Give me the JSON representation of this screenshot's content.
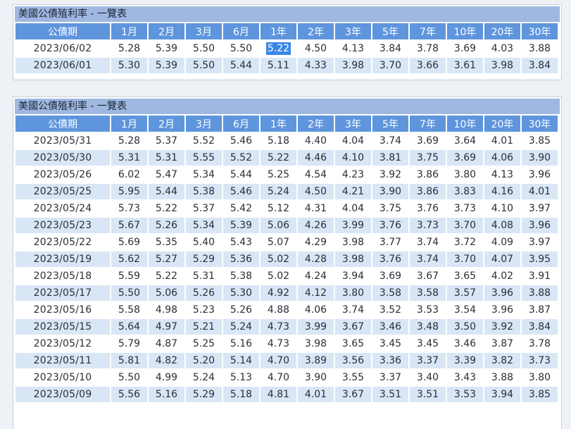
{
  "columns": [
    "公債期",
    "1月",
    "2月",
    "3月",
    "6月",
    "1年",
    "2年",
    "3年",
    "5年",
    "7年",
    "10年",
    "20年",
    "30年"
  ],
  "tables": [
    {
      "title": "美國公債殖利率 - 一覽表",
      "rows": [
        {
          "date": "2023/06/02",
          "values": [
            "5.28",
            "5.39",
            "5.50",
            "5.50",
            "5.22",
            "4.50",
            "4.13",
            "3.84",
            "3.78",
            "3.69",
            "4.03",
            "3.88"
          ]
        },
        {
          "date": "2023/06/01",
          "values": [
            "5.30",
            "5.39",
            "5.50",
            "5.44",
            "5.11",
            "4.33",
            "3.98",
            "3.70",
            "3.66",
            "3.61",
            "3.98",
            "3.84"
          ]
        }
      ]
    },
    {
      "title": "美國公債殖利率 - 一覽表",
      "rows": [
        {
          "date": "2023/05/31",
          "values": [
            "5.28",
            "5.37",
            "5.52",
            "5.46",
            "5.18",
            "4.40",
            "4.04",
            "3.74",
            "3.69",
            "3.64",
            "4.01",
            "3.85"
          ]
        },
        {
          "date": "2023/05/30",
          "values": [
            "5.31",
            "5.31",
            "5.55",
            "5.52",
            "5.22",
            "4.46",
            "4.10",
            "3.81",
            "3.75",
            "3.69",
            "4.06",
            "3.90"
          ]
        },
        {
          "date": "2023/05/26",
          "values": [
            "6.02",
            "5.47",
            "5.34",
            "5.44",
            "5.25",
            "4.54",
            "4.23",
            "3.92",
            "3.86",
            "3.80",
            "4.13",
            "3.96"
          ]
        },
        {
          "date": "2023/05/25",
          "values": [
            "5.95",
            "5.44",
            "5.38",
            "5.46",
            "5.24",
            "4.50",
            "4.21",
            "3.90",
            "3.86",
            "3.83",
            "4.16",
            "4.01"
          ]
        },
        {
          "date": "2023/05/24",
          "values": [
            "5.73",
            "5.22",
            "5.37",
            "5.42",
            "5.12",
            "4.31",
            "4.04",
            "3.75",
            "3.76",
            "3.73",
            "4.10",
            "3.97"
          ]
        },
        {
          "date": "2023/05/23",
          "values": [
            "5.67",
            "5.26",
            "5.34",
            "5.39",
            "5.06",
            "4.26",
            "3.99",
            "3.76",
            "3.73",
            "3.70",
            "4.08",
            "3.96"
          ]
        },
        {
          "date": "2023/05/22",
          "values": [
            "5.69",
            "5.35",
            "5.40",
            "5.43",
            "5.07",
            "4.29",
            "3.98",
            "3.77",
            "3.74",
            "3.72",
            "4.09",
            "3.97"
          ]
        },
        {
          "date": "2023/05/19",
          "values": [
            "5.62",
            "5.27",
            "5.29",
            "5.36",
            "5.02",
            "4.28",
            "3.98",
            "3.76",
            "3.74",
            "3.70",
            "4.07",
            "3.95"
          ]
        },
        {
          "date": "2023/05/18",
          "values": [
            "5.59",
            "5.22",
            "5.31",
            "5.38",
            "5.02",
            "4.24",
            "3.94",
            "3.69",
            "3.67",
            "3.65",
            "4.02",
            "3.91"
          ]
        },
        {
          "date": "2023/05/17",
          "values": [
            "5.50",
            "5.06",
            "5.26",
            "5.30",
            "4.92",
            "4.12",
            "3.80",
            "3.58",
            "3.58",
            "3.57",
            "3.96",
            "3.88"
          ]
        },
        {
          "date": "2023/05/16",
          "values": [
            "5.58",
            "4.98",
            "5.23",
            "5.26",
            "4.88",
            "4.06",
            "3.74",
            "3.52",
            "3.53",
            "3.54",
            "3.96",
            "3.87"
          ]
        },
        {
          "date": "2023/05/15",
          "values": [
            "5.64",
            "4.97",
            "5.21",
            "5.24",
            "4.73",
            "3.99",
            "3.67",
            "3.46",
            "3.48",
            "3.50",
            "3.92",
            "3.84"
          ]
        },
        {
          "date": "2023/05/12",
          "values": [
            "5.79",
            "4.87",
            "5.25",
            "5.16",
            "4.73",
            "3.98",
            "3.65",
            "3.45",
            "3.45",
            "3.46",
            "3.87",
            "3.78"
          ]
        },
        {
          "date": "2023/05/11",
          "values": [
            "5.81",
            "4.82",
            "5.20",
            "5.14",
            "4.70",
            "3.89",
            "3.56",
            "3.36",
            "3.37",
            "3.39",
            "3.82",
            "3.73"
          ]
        },
        {
          "date": "2023/05/10",
          "values": [
            "5.50",
            "4.99",
            "5.24",
            "5.13",
            "4.70",
            "3.90",
            "3.55",
            "3.37",
            "3.40",
            "3.43",
            "3.88",
            "3.80"
          ]
        },
        {
          "date": "2023/05/09",
          "values": [
            "5.56",
            "5.16",
            "5.29",
            "5.18",
            "4.81",
            "4.01",
            "3.67",
            "3.51",
            "3.51",
            "3.53",
            "3.94",
            "3.85"
          ]
        }
      ]
    }
  ],
  "selection": {
    "table": 0,
    "row": 0,
    "col": 4
  },
  "colors": {
    "title_bar": "#9fb8e2",
    "header_bg": "#5e95dd",
    "row_even": "#d9e6f5",
    "row_odd": "#ffffff",
    "selection": "#3b86e6"
  }
}
